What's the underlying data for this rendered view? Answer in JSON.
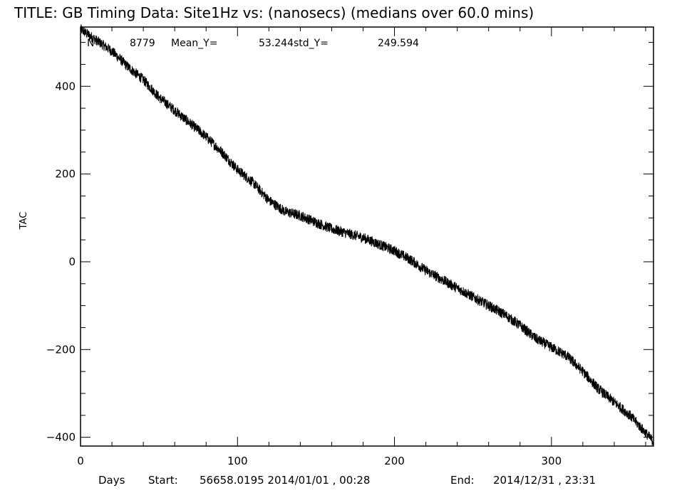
{
  "chart_data": {
    "type": "line",
    "title": "TITLE: GB Timing Data: Site1Hz vs: (nanosecs) (medians over 60.0 mins)",
    "stats": {
      "label_n": "N=",
      "n": "8779",
      "mean_label": "Mean_Y=",
      "mean": "53.244",
      "std_label": "std_Y=",
      "std": "249.594"
    },
    "xlabel": "Days",
    "ylabel": "TAC",
    "footer": {
      "start_label": "Start:",
      "start_value": "56658.0195 2014/01/01 , 00:28",
      "end_label": "End:",
      "end_value": "2014/12/31 , 23:31"
    },
    "xlim": [
      0,
      365
    ],
    "ylim": [
      -420,
      535
    ],
    "x_ticks": [
      0,
      100,
      200,
      300
    ],
    "x_tick_labels": [
      "0",
      "100",
      "200",
      "300"
    ],
    "x_minor_step": 20,
    "y_ticks": [
      -400,
      -200,
      0,
      200,
      400
    ],
    "y_tick_labels": [
      "−400",
      "−200",
      "0",
      "200",
      "400"
    ],
    "y_minor_step": 50,
    "grid": false,
    "line_color": "#000000",
    "series": [
      {
        "x": [
          0,
          10,
          20,
          30,
          40,
          50,
          60,
          70,
          80,
          90,
          100,
          110,
          120,
          130,
          140,
          150,
          160,
          170,
          180,
          190,
          200,
          210,
          220,
          230,
          240,
          250,
          260,
          270,
          280,
          290,
          300,
          310,
          320,
          330,
          340,
          350,
          360,
          365
        ],
        "y": [
          530,
          505,
          480,
          445,
          415,
          375,
          345,
          315,
          285,
          250,
          210,
          180,
          140,
          115,
          105,
          90,
          75,
          65,
          55,
          40,
          25,
          5,
          -20,
          -40,
          -60,
          -80,
          -100,
          -120,
          -145,
          -175,
          -195,
          -215,
          -250,
          -290,
          -320,
          -350,
          -390,
          -410
        ],
        "noise_amplitude": 12
      }
    ]
  }
}
